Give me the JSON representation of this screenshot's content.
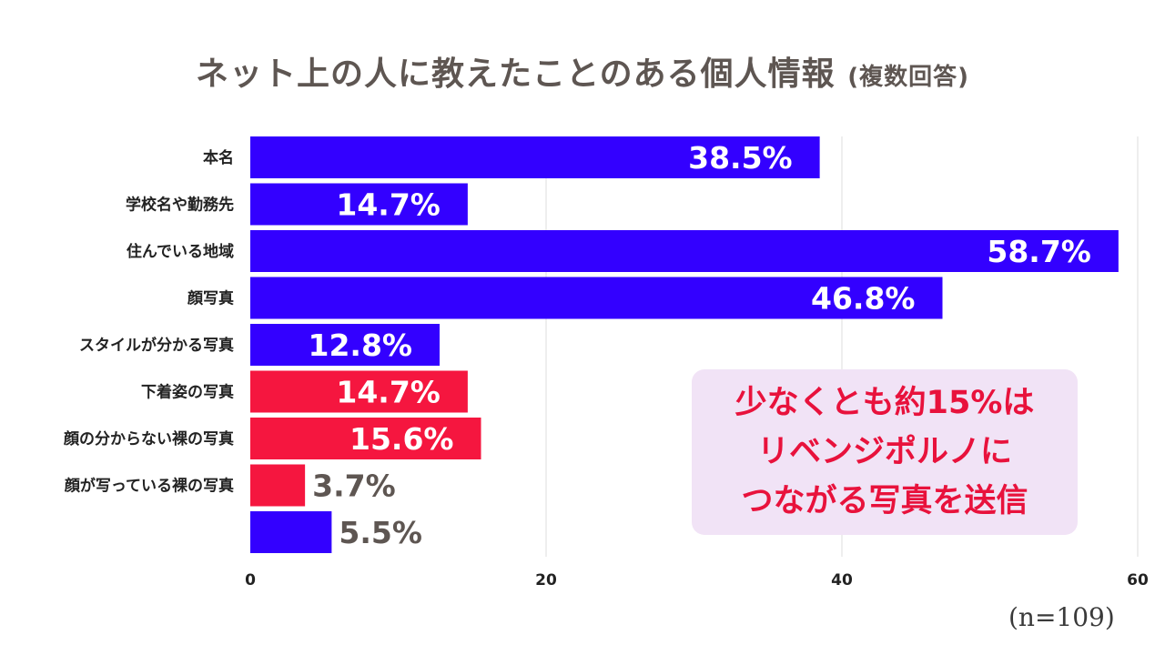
{
  "chart_data": {
    "type": "bar",
    "orientation": "horizontal",
    "title": "ネット上の人に教えたことのある個人情報",
    "title_note": "(複数回答)",
    "categories": [
      "本名",
      "学校名や勤務先",
      "住んでいる地域",
      "顔写真",
      "スタイルが分かる写真",
      "下着姿の写真",
      "顔の分からない裸の写真",
      "顔が写っている裸の写真",
      ""
    ],
    "values": [
      38.5,
      14.7,
      58.7,
      46.8,
      12.8,
      14.7,
      15.6,
      3.7,
      5.5
    ],
    "value_labels": [
      "38.5%",
      "14.7%",
      "58.7%",
      "46.8%",
      "12.8%",
      "14.7%",
      "15.6%",
      "3.7%",
      "5.5%"
    ],
    "bar_colors": [
      "#3300ff",
      "#3300ff",
      "#3300ff",
      "#3300ff",
      "#3300ff",
      "#f5163f",
      "#f5163f",
      "#f5163f",
      "#3300ff"
    ],
    "xlim": [
      0,
      60
    ],
    "xticks": [
      0,
      20,
      40,
      60
    ],
    "xtick_labels": [
      "0",
      "20",
      "40",
      "60"
    ],
    "grid": true,
    "sample_note": "(n=109)",
    "annotation": {
      "lines": [
        "少なくとも約15%は",
        "リベンジポルノに",
        "つながる写真を送信"
      ],
      "color": "#e8123c",
      "background": "#f1e3f6"
    }
  }
}
